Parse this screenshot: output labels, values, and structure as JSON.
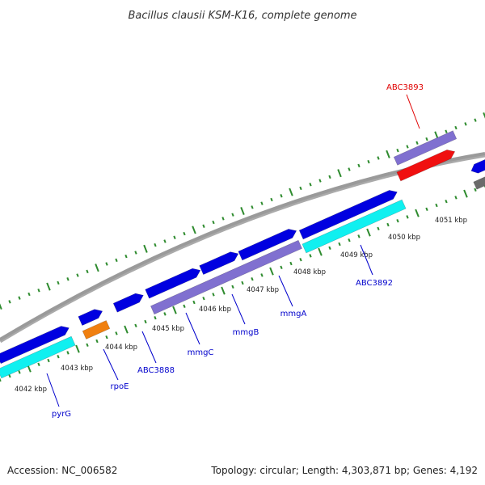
{
  "title": "Bacillus clausii KSM-K16, complete genome",
  "footer": {
    "accession": "Accession: NC_006582",
    "summary": "Topology: circular; Length: 4,303,871 bp; Genes: 4,192"
  },
  "colors": {
    "backbone": "#8c8c8c",
    "tick": "#2e8b2e",
    "forward_gene": "#0000e0",
    "reverse_gene": "#8070d0",
    "cyan_gene": "#10f0f0",
    "orange_gene": "#f08010",
    "red_gene": "#f01010",
    "gray_gene": "#6b6b6b",
    "label_blue": "#0000cc",
    "label_red": "#e00000"
  },
  "kbp_labels": [
    "4042 kbp",
    "4043 kbp",
    "4044 kbp",
    "4045 kbp",
    "4046 kbp",
    "4047 kbp",
    "4048 kbp",
    "4049 kbp",
    "4050 kbp",
    "4051 kbp"
  ],
  "gene_labels": [
    "pyrG",
    "rpoE",
    "ABC3888",
    "mmgC",
    "mmgB",
    "mmgA",
    "ABC3892",
    "ABC3893"
  ]
}
